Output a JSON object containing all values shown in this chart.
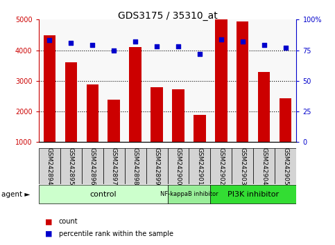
{
  "title": "GDS3175 / 35310_at",
  "categories": [
    "GSM242894",
    "GSM242895",
    "GSM242896",
    "GSM242897",
    "GSM242898",
    "GSM242899",
    "GSM242900",
    "GSM242901",
    "GSM242902",
    "GSM242903",
    "GSM242904",
    "GSM242905"
  ],
  "bar_values": [
    4480,
    3600,
    2880,
    2380,
    4100,
    2800,
    2730,
    1880,
    5000,
    4950,
    3280,
    2430
  ],
  "percentile_values": [
    83,
    81,
    79,
    75,
    82,
    78,
    78,
    72,
    84,
    82,
    79,
    77
  ],
  "bar_color": "#cc0000",
  "percentile_color": "#0000cc",
  "ylim_left": [
    1000,
    5000
  ],
  "ylim_right": [
    0,
    100
  ],
  "yticks_left": [
    1000,
    2000,
    3000,
    4000,
    5000
  ],
  "yticks_right": [
    0,
    25,
    50,
    75,
    100
  ],
  "ytick_right_labels": [
    "0",
    "25",
    "50",
    "75",
    "100%"
  ],
  "grid_yticks": [
    2000,
    3000,
    4000
  ],
  "agent_groups": [
    {
      "label": "control",
      "start": 0,
      "end": 6,
      "color": "#ccffcc",
      "fontsize": 8
    },
    {
      "label": "NF-kappaB inhibitor",
      "start": 6,
      "end": 8,
      "color": "#99ee99",
      "fontsize": 6
    },
    {
      "label": "PI3K inhibitor",
      "start": 8,
      "end": 12,
      "color": "#33dd33",
      "fontsize": 8
    }
  ],
  "bar_color_left": "#cc0000",
  "percentile_color_right": "#0000cc",
  "title_fontsize": 10,
  "tick_label_fontsize": 6.5,
  "ytick_left_fontsize": 7,
  "ytick_right_fontsize": 7,
  "legend_items": [
    "count",
    "percentile rank within the sample"
  ],
  "legend_colors": [
    "#cc0000",
    "#0000cc"
  ],
  "agent_label": "agent",
  "bar_width": 0.55,
  "percentile_marker_size": 18,
  "bg_color": "#f0f0f0"
}
